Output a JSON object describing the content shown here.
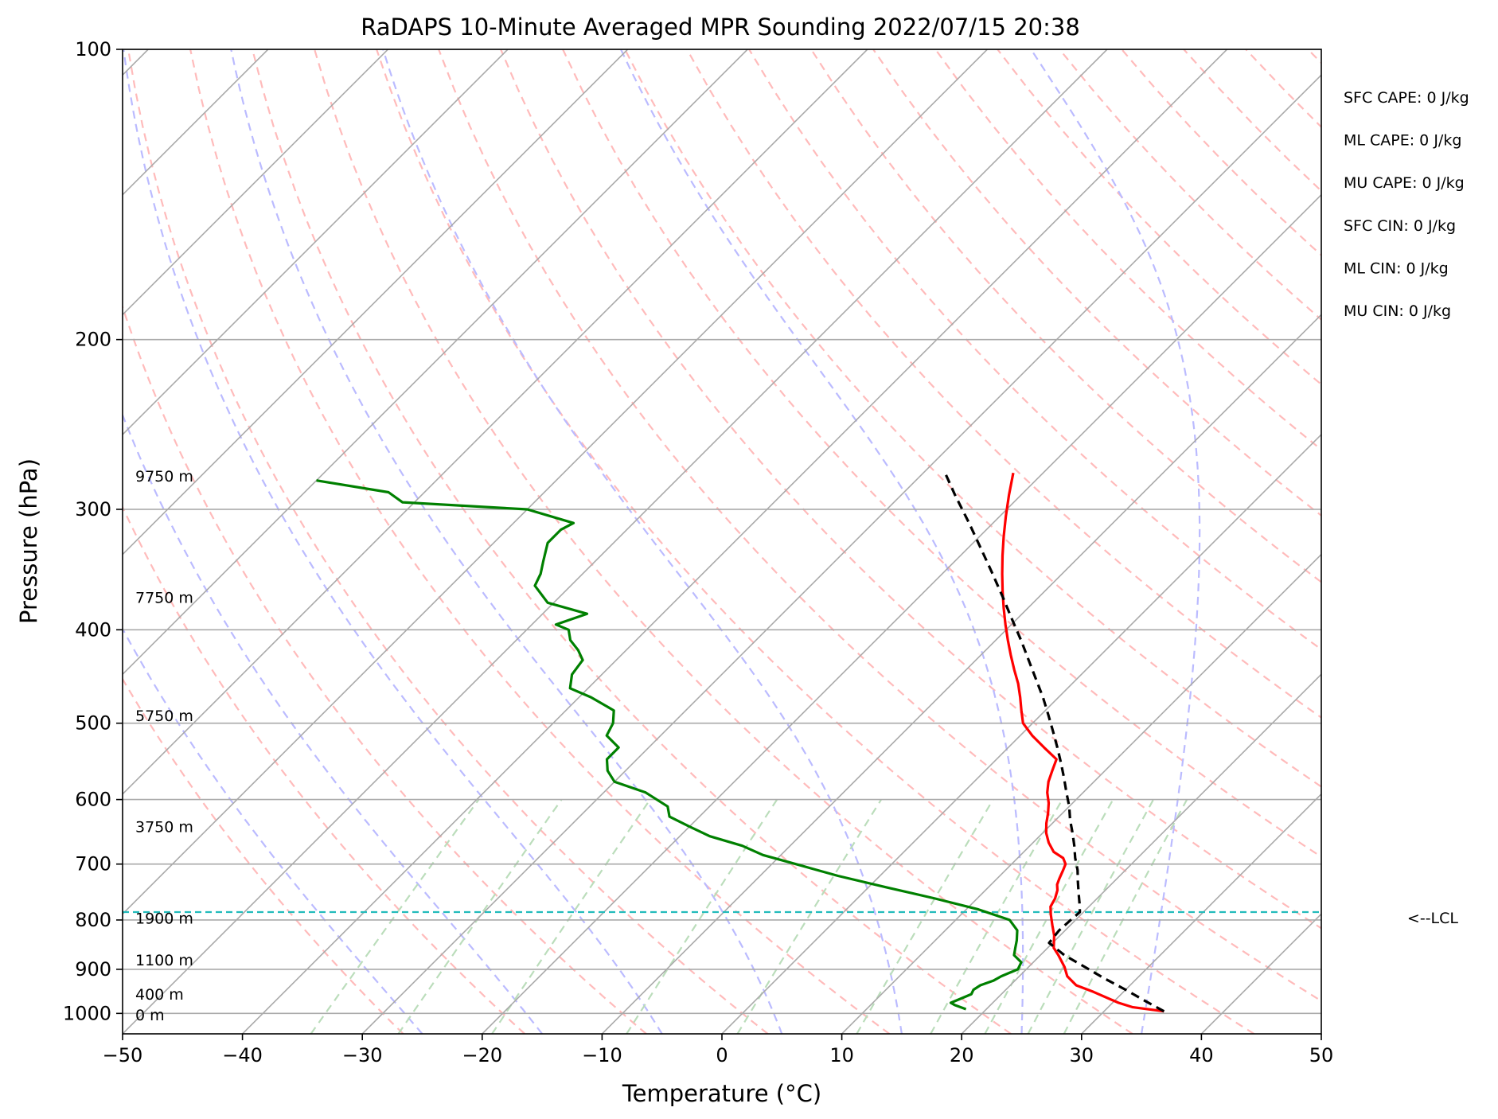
{
  "chart_data": {
    "type": "line",
    "subtype": "skew-t log-p sounding",
    "title": "RaDAPS 10-Minute Averaged MPR Sounding 2022/07/15 20:38",
    "xlabel": "Temperature (°C)",
    "ylabel": "Pressure (hPa)",
    "xlim": [
      -50,
      50
    ],
    "ylim": [
      1050,
      100
    ],
    "y_scale": "log",
    "skew": true,
    "grid": true,
    "x_ticks": [
      -50,
      -40,
      -30,
      -20,
      -10,
      0,
      10,
      20,
      30,
      40,
      50
    ],
    "x_tick_labels": [
      "−50",
      "−40",
      "−30",
      "−20",
      "−10",
      "0",
      "10",
      "20",
      "30",
      "40",
      "50"
    ],
    "y_ticks": [
      100,
      200,
      300,
      400,
      500,
      600,
      700,
      800,
      900,
      1000
    ],
    "y_tick_labels": [
      "100",
      "200",
      "300",
      "400",
      "500",
      "600",
      "700",
      "800",
      "900",
      "1000"
    ],
    "series": [
      {
        "role": "temperature",
        "color": "#ff0000",
        "points": [
          [
            35.0,
            995
          ],
          [
            32.0,
            985
          ],
          [
            30.5,
            975
          ],
          [
            27.5,
            950
          ],
          [
            25.5,
            935
          ],
          [
            24.0,
            915
          ],
          [
            23.0,
            895
          ],
          [
            21.5,
            870
          ],
          [
            20.5,
            855
          ],
          [
            19.5,
            830
          ],
          [
            18.5,
            810
          ],
          [
            17.5,
            790
          ],
          [
            16.8,
            775
          ],
          [
            16.5,
            760
          ],
          [
            16.0,
            745
          ],
          [
            15.5,
            735
          ],
          [
            15.2,
            725
          ],
          [
            14.8,
            710
          ],
          [
            14.5,
            700
          ],
          [
            13.8,
            690
          ],
          [
            12.5,
            680
          ],
          [
            11.3,
            665
          ],
          [
            10.3,
            650
          ],
          [
            9.5,
            635
          ],
          [
            8.8,
            620
          ],
          [
            8.0,
            605
          ],
          [
            7.0,
            590
          ],
          [
            6.2,
            575
          ],
          [
            5.6,
            560
          ],
          [
            5.0,
            545
          ],
          [
            3.0,
            530
          ],
          [
            1.0,
            515
          ],
          [
            -0.8,
            500
          ],
          [
            -2.0,
            485
          ],
          [
            -3.2,
            470
          ],
          [
            -4.5,
            455
          ],
          [
            -6.0,
            440
          ],
          [
            -7.5,
            425
          ],
          [
            -9.0,
            410
          ],
          [
            -10.5,
            395
          ],
          [
            -12.0,
            380
          ],
          [
            -13.5,
            365
          ],
          [
            -15.0,
            350
          ],
          [
            -16.5,
            335
          ],
          [
            -18.0,
            320
          ],
          [
            -19.5,
            305
          ],
          [
            -21.0,
            290
          ],
          [
            -22.5,
            275
          ]
        ]
      },
      {
        "role": "dewpoint",
        "color": "#008000",
        "points": [
          [
            18.3,
            990
          ],
          [
            17.0,
            980
          ],
          [
            16.5,
            975
          ],
          [
            17.0,
            965
          ],
          [
            17.5,
            955
          ],
          [
            17.3,
            945
          ],
          [
            17.5,
            935
          ],
          [
            18.2,
            925
          ],
          [
            18.5,
            915
          ],
          [
            19.3,
            900
          ],
          [
            19.0,
            885
          ],
          [
            17.8,
            870
          ],
          [
            17.3,
            855
          ],
          [
            16.8,
            840
          ],
          [
            16.0,
            820
          ],
          [
            14.5,
            800
          ],
          [
            11.0,
            780
          ],
          [
            6.5,
            760
          ],
          [
            1.5,
            740
          ],
          [
            -3.5,
            720
          ],
          [
            -8.0,
            700
          ],
          [
            -11.5,
            685
          ],
          [
            -14.0,
            670
          ],
          [
            -17.5,
            655
          ],
          [
            -20.0,
            640
          ],
          [
            -22.5,
            625
          ],
          [
            -23.5,
            610
          ],
          [
            -26.5,
            590
          ],
          [
            -30.0,
            575
          ],
          [
            -31.5,
            560
          ],
          [
            -32.5,
            545
          ],
          [
            -32.5,
            530
          ],
          [
            -34.5,
            515
          ],
          [
            -35.0,
            500
          ],
          [
            -36.0,
            485
          ],
          [
            -39.0,
            470
          ],
          [
            -41.5,
            460
          ],
          [
            -42.5,
            445
          ],
          [
            -42.8,
            430
          ],
          [
            -44.0,
            420
          ],
          [
            -45.5,
            410
          ],
          [
            -46.5,
            400
          ],
          [
            -48.0,
            395
          ],
          [
            -46.3,
            385
          ],
          [
            -50.5,
            375
          ],
          [
            -53.0,
            360
          ],
          [
            -53.5,
            350
          ],
          [
            -54.3,
            340
          ],
          [
            -55.5,
            325
          ],
          [
            -55.5,
            315
          ],
          [
            -55.0,
            310
          ],
          [
            -60.0,
            300
          ],
          [
            -71.0,
            295
          ],
          [
            -73.0,
            288
          ],
          [
            -80.0,
            280
          ]
        ]
      },
      {
        "role": "parcel",
        "color": "#000000",
        "style": "dashed",
        "points": [
          [
            35.0,
            995
          ],
          [
            32.5,
            970
          ],
          [
            30.0,
            945
          ],
          [
            27.3,
            920
          ],
          [
            24.7,
            895
          ],
          [
            22.0,
            870
          ],
          [
            19.7,
            845
          ],
          [
            19.5,
            820
          ],
          [
            19.6,
            800
          ],
          [
            19.7,
            785
          ],
          [
            19.0,
            770
          ],
          [
            18.0,
            750
          ],
          [
            17.0,
            730
          ],
          [
            16.0,
            710
          ],
          [
            14.8,
            690
          ],
          [
            13.7,
            670
          ],
          [
            12.5,
            650
          ],
          [
            11.2,
            630
          ],
          [
            10.0,
            610
          ],
          [
            8.6,
            590
          ],
          [
            7.2,
            570
          ],
          [
            5.7,
            550
          ],
          [
            4.1,
            530
          ],
          [
            2.4,
            510
          ],
          [
            0.6,
            490
          ],
          [
            -1.3,
            470
          ],
          [
            -3.4,
            450
          ],
          [
            -5.6,
            430
          ],
          [
            -7.9,
            410
          ],
          [
            -10.4,
            390
          ],
          [
            -13.0,
            370
          ],
          [
            -15.8,
            350
          ],
          [
            -18.8,
            330
          ],
          [
            -22.0,
            310
          ],
          [
            -25.5,
            290
          ],
          [
            -28.0,
            276
          ]
        ]
      }
    ],
    "lcl_pressure": 785,
    "lcl_label": "<--LCL",
    "height_labels": [
      {
        "label": "9750 m",
        "p": 277
      },
      {
        "label": "7750 m",
        "p": 370
      },
      {
        "label": "5750 m",
        "p": 491
      },
      {
        "label": "3750 m",
        "p": 640
      },
      {
        "label": "1900 m",
        "p": 796
      },
      {
        "label": "1100 m",
        "p": 880
      },
      {
        "label": "400 m",
        "p": 955
      },
      {
        "label": "0 m",
        "p": 1003
      }
    ],
    "indices": [
      "SFC CAPE: 0 J/kg",
      "ML CAPE: 0 J/kg",
      "MU CAPE: 0 J/kg",
      "SFC CIN: 0 J/kg",
      "ML CIN: 0 J/kg",
      "MU CIN: 0 J/kg"
    ],
    "colors": {
      "isotherm": "#aaaaaa",
      "isobar": "#aaaaaa",
      "dry_adiabat": "#ffbbbb",
      "moist_adiabat": "#bbbbff",
      "mixing_ratio": "#bbddbb",
      "lcl": "#22bbbb"
    }
  }
}
